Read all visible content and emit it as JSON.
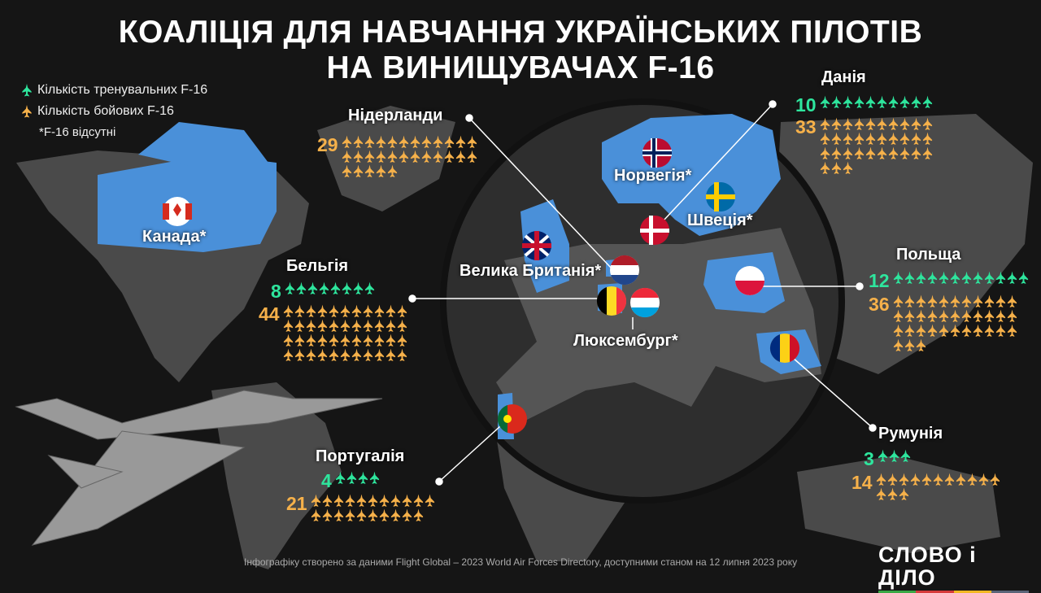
{
  "title": [
    "КОАЛІЦІЯ ДЛЯ НАВЧАННЯ УКРАЇНСЬКИХ ПІЛОТІВ",
    "НА ВИНИЩУВАЧАХ F-16"
  ],
  "legend": {
    "training": "Кількість тренувальних F-16",
    "combat": "Кількість бойових F-16",
    "note": "*F-16 відсутні"
  },
  "colors": {
    "training": "#2ee59d",
    "combat": "#f6b14a",
    "coalition": "#4a90d9",
    "land": "#555555"
  },
  "countries": [
    {
      "id": "netherlands",
      "name": "Нідерланди",
      "combat": 29
    },
    {
      "id": "denmark",
      "name": "Данія",
      "training": 10,
      "combat": 33
    },
    {
      "id": "belgium",
      "name": "Бельгія",
      "training": 8,
      "combat": 44
    },
    {
      "id": "poland",
      "name": "Польща",
      "training": 12,
      "combat": 36
    },
    {
      "id": "romania",
      "name": "Румунія",
      "training": 3,
      "combat": 14
    },
    {
      "id": "portugal",
      "name": "Португалія",
      "training": 4,
      "combat": 21
    },
    {
      "id": "canada",
      "name": "Канада*"
    },
    {
      "id": "norway",
      "name": "Норвегія*"
    },
    {
      "id": "sweden",
      "name": "Швеція*"
    },
    {
      "id": "uk",
      "name": "Велика Британія*"
    },
    {
      "id": "luxembourg",
      "name": "Люксембург*"
    }
  ],
  "footer": "Інфографіку створено за даними Flight Global – 2023 World Air Forces Directory, доступними станом на 12 липня 2023 року",
  "logo": {
    "text": "СЛОВО і ДІЛО",
    "stripe_colors": [
      "#3aa845",
      "#d63b3b",
      "#f2b823",
      "#5a6478"
    ]
  }
}
